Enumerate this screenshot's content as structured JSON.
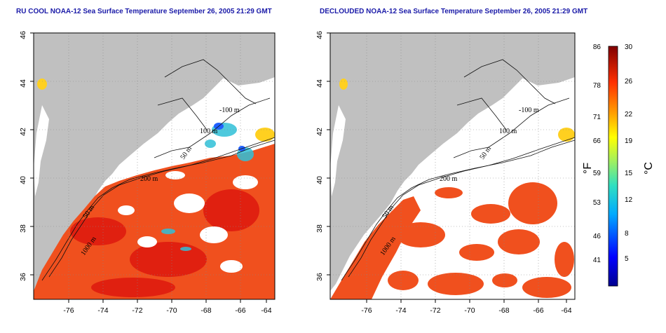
{
  "left_panel": {
    "title": "RU COOL NOAA-12 Sea Surface Temperature September 26, 2005 21:29 GMT",
    "contour_labels": [
      "-100 m",
      "100 m",
      "50 m",
      "200 m",
      "50 m",
      "1000 m"
    ]
  },
  "right_panel": {
    "title": "DECLOUDED NOAA-12 Sea Surface Temperature September 26, 2005 21:29 GMT",
    "contour_labels": [
      "-100 m",
      "100 m",
      "50 m",
      "200 m",
      "50 m",
      "1000 m"
    ]
  },
  "axes": {
    "lat_ticks": [
      "46",
      "44",
      "42",
      "40",
      "38",
      "36"
    ],
    "lon_ticks": [
      "-76",
      "-74",
      "-72",
      "-70",
      "-68",
      "-66",
      "-64"
    ],
    "lat_range": [
      35,
      46
    ],
    "lon_range": [
      -77,
      -63
    ]
  },
  "colorbar": {
    "fahrenheit_label": "°F",
    "celsius_label": "°C",
    "fahrenheit_ticks": [
      "86",
      "78",
      "71",
      "66",
      "59",
      "53",
      "46",
      "41"
    ],
    "celsius_ticks": [
      "30",
      "26",
      "22",
      "19",
      "15",
      "12",
      "8",
      "5"
    ]
  },
  "colors": {
    "land": "#c0c0c0",
    "warm_water": "#f0501e",
    "cloud": "#ffffff",
    "title": "#1a1aa8"
  }
}
